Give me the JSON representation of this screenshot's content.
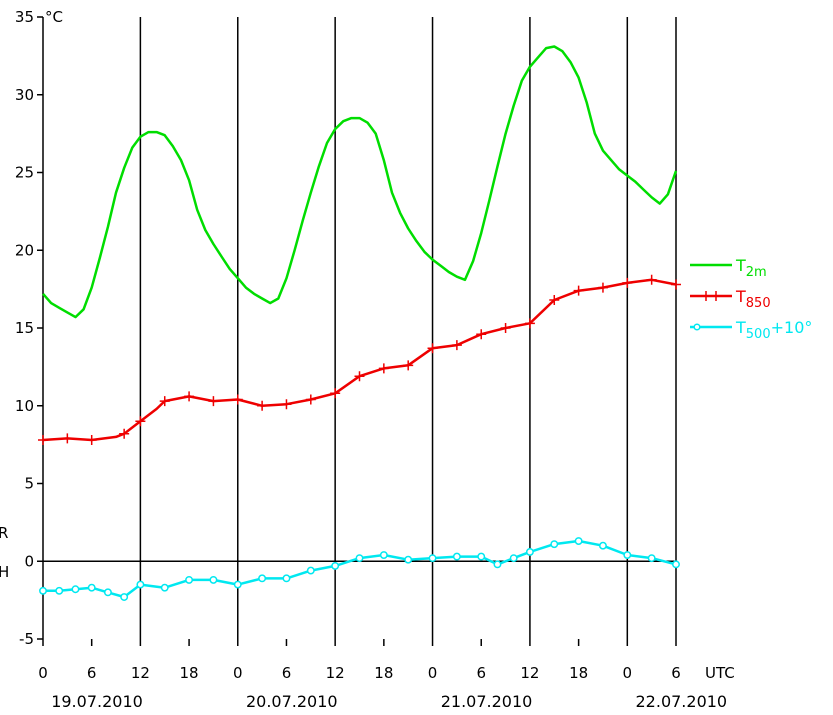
{
  "chart_data": {
    "type": "line",
    "unit_label": "°C",
    "xlabel": "UTC",
    "x_unit": "hours since 19.07.2010 00 UTC",
    "xlim": [
      0,
      78
    ],
    "ylim": [
      -5,
      35
    ],
    "yticks": [
      -5,
      0,
      5,
      10,
      15,
      20,
      25,
      30,
      35
    ],
    "xticks": [
      {
        "x": 0,
        "label": "0"
      },
      {
        "x": 6,
        "label": "6"
      },
      {
        "x": 12,
        "label": "12"
      },
      {
        "x": 18,
        "label": "18"
      },
      {
        "x": 24,
        "label": "0"
      },
      {
        "x": 30,
        "label": "6"
      },
      {
        "x": 36,
        "label": "12"
      },
      {
        "x": 42,
        "label": "18"
      },
      {
        "x": 48,
        "label": "0"
      },
      {
        "x": 54,
        "label": "6"
      },
      {
        "x": 60,
        "label": "12"
      },
      {
        "x": 66,
        "label": "18"
      },
      {
        "x": 72,
        "label": "0"
      },
      {
        "x": 78,
        "label": "6"
      }
    ],
    "day_lines": [
      12,
      24,
      36,
      48,
      60,
      72
    ],
    "dates": [
      {
        "x": 0,
        "label": "19.07.2010"
      },
      {
        "x": 24,
        "label": "20.07.2010"
      },
      {
        "x": 48,
        "label": "21.07.2010"
      },
      {
        "x": 72,
        "label": "22.07.2010"
      }
    ],
    "left_margin_labels": [
      {
        "text": "R",
        "color": "#00d000",
        "y": 1.5
      },
      {
        "text": "H",
        "color": "#0000e0",
        "y": -1
      }
    ],
    "series": [
      {
        "name_main": "T",
        "name_sub": "2m",
        "name_tail": "",
        "color": "#00dd00",
        "marker": "none",
        "points": [
          [
            0,
            17.2
          ],
          [
            1,
            16.6
          ],
          [
            2,
            16.3
          ],
          [
            3,
            16.0
          ],
          [
            4,
            15.7
          ],
          [
            5,
            16.2
          ],
          [
            6,
            17.6
          ],
          [
            7,
            19.5
          ],
          [
            8,
            21.5
          ],
          [
            9,
            23.7
          ],
          [
            10,
            25.3
          ],
          [
            11,
            26.6
          ],
          [
            12,
            27.3
          ],
          [
            13,
            27.6
          ],
          [
            14,
            27.6
          ],
          [
            15,
            27.4
          ],
          [
            16,
            26.7
          ],
          [
            17,
            25.8
          ],
          [
            18,
            24.5
          ],
          [
            19,
            22.6
          ],
          [
            20,
            21.3
          ],
          [
            21,
            20.4
          ],
          [
            22,
            19.6
          ],
          [
            23,
            18.8
          ],
          [
            24,
            18.2
          ],
          [
            25,
            17.6
          ],
          [
            26,
            17.2
          ],
          [
            27,
            16.9
          ],
          [
            28,
            16.6
          ],
          [
            29,
            16.9
          ],
          [
            30,
            18.2
          ],
          [
            31,
            20.0
          ],
          [
            32,
            21.9
          ],
          [
            33,
            23.7
          ],
          [
            34,
            25.4
          ],
          [
            35,
            26.9
          ],
          [
            36,
            27.8
          ],
          [
            37,
            28.3
          ],
          [
            38,
            28.5
          ],
          [
            39,
            28.5
          ],
          [
            40,
            28.2
          ],
          [
            41,
            27.5
          ],
          [
            42,
            25.8
          ],
          [
            43,
            23.7
          ],
          [
            44,
            22.4
          ],
          [
            45,
            21.4
          ],
          [
            46,
            20.6
          ],
          [
            47,
            19.9
          ],
          [
            48,
            19.4
          ],
          [
            49,
            19.0
          ],
          [
            50,
            18.6
          ],
          [
            51,
            18.3
          ],
          [
            52,
            18.1
          ],
          [
            53,
            19.3
          ],
          [
            54,
            21.1
          ],
          [
            55,
            23.2
          ],
          [
            56,
            25.4
          ],
          [
            57,
            27.5
          ],
          [
            58,
            29.3
          ],
          [
            59,
            30.9
          ],
          [
            60,
            31.8
          ],
          [
            61,
            32.4
          ],
          [
            62,
            33.0
          ],
          [
            63,
            33.1
          ],
          [
            64,
            32.8
          ],
          [
            65,
            32.1
          ],
          [
            66,
            31.1
          ],
          [
            67,
            29.5
          ],
          [
            68,
            27.5
          ],
          [
            69,
            26.4
          ],
          [
            70,
            25.8
          ],
          [
            71,
            25.2
          ],
          [
            72,
            24.8
          ],
          [
            73,
            24.4
          ],
          [
            74,
            23.9
          ],
          [
            75,
            23.4
          ],
          [
            76,
            23.0
          ],
          [
            77,
            23.6
          ],
          [
            78,
            25.1
          ]
        ]
      },
      {
        "name_main": "T",
        "name_sub": "850",
        "name_tail": "",
        "color": "#ee0000",
        "marker": "plus",
        "points": [
          [
            0,
            7.8
          ],
          [
            3,
            7.9
          ],
          [
            6,
            7.8
          ],
          [
            9,
            8.0
          ],
          [
            10,
            8.2
          ],
          [
            12,
            9.0
          ],
          [
            14,
            9.8
          ],
          [
            15,
            10.3
          ],
          [
            18,
            10.6
          ],
          [
            21,
            10.3
          ],
          [
            24,
            10.4
          ],
          [
            27,
            10.0
          ],
          [
            30,
            10.1
          ],
          [
            33,
            10.4
          ],
          [
            36,
            10.8
          ],
          [
            39,
            11.9
          ],
          [
            42,
            12.4
          ],
          [
            45,
            12.6
          ],
          [
            48,
            13.7
          ],
          [
            51,
            13.9
          ],
          [
            54,
            14.6
          ],
          [
            57,
            15.0
          ],
          [
            60,
            15.3
          ],
          [
            63,
            16.8
          ],
          [
            66,
            17.4
          ],
          [
            69,
            17.6
          ],
          [
            72,
            17.9
          ],
          [
            75,
            18.1
          ],
          [
            78,
            17.8
          ]
        ],
        "markers_at": [
          0,
          3,
          6,
          10,
          12,
          15,
          18,
          21,
          24,
          27,
          30,
          33,
          36,
          39,
          42,
          45,
          48,
          51,
          54,
          57,
          60,
          63,
          66,
          69,
          72,
          75,
          78
        ]
      },
      {
        "name_main": "T",
        "name_sub": "500",
        "name_tail": "+10°",
        "color": "#00e8f0",
        "marker": "circle",
        "points": [
          [
            0,
            -1.9
          ],
          [
            2,
            -1.9
          ],
          [
            4,
            -1.8
          ],
          [
            6,
            -1.7
          ],
          [
            8,
            -2.0
          ],
          [
            10,
            -2.3
          ],
          [
            12,
            -1.5
          ],
          [
            15,
            -1.7
          ],
          [
            18,
            -1.2
          ],
          [
            21,
            -1.2
          ],
          [
            24,
            -1.5
          ],
          [
            27,
            -1.1
          ],
          [
            30,
            -1.1
          ],
          [
            33,
            -0.6
          ],
          [
            36,
            -0.3
          ],
          [
            39,
            0.2
          ],
          [
            42,
            0.4
          ],
          [
            45,
            0.1
          ],
          [
            48,
            0.2
          ],
          [
            51,
            0.3
          ],
          [
            54,
            0.3
          ],
          [
            56,
            -0.2
          ],
          [
            58,
            0.2
          ],
          [
            60,
            0.6
          ],
          [
            63,
            1.1
          ],
          [
            66,
            1.3
          ],
          [
            69,
            1.0
          ],
          [
            72,
            0.4
          ],
          [
            75,
            0.2
          ],
          [
            78,
            -0.2
          ]
        ]
      }
    ]
  }
}
